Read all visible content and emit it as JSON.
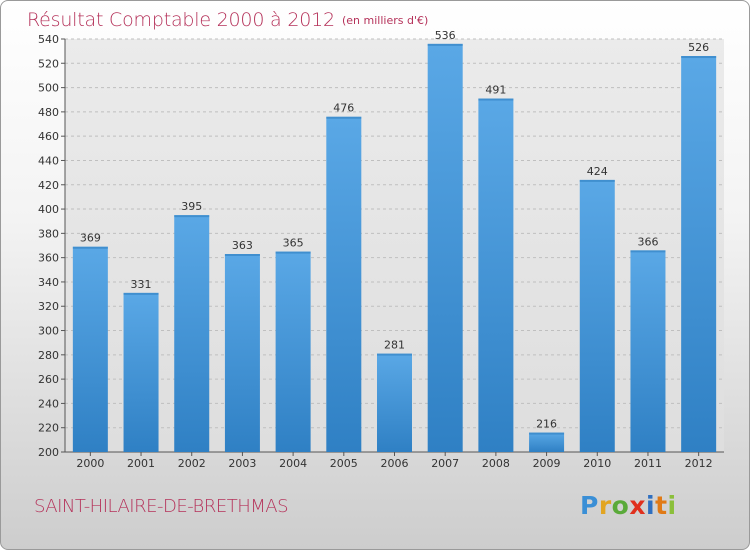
{
  "header": {
    "title": "Résultat Comptable 2000 à 2012",
    "subtitle": "(en milliers d'€)"
  },
  "footer": {
    "commune": "SAINT-HILAIRE-DE-BRETHMAS",
    "brand_letters": [
      "P",
      "r",
      "o",
      "x",
      "i",
      "t",
      "i"
    ],
    "brand_colors": [
      "#3a8fd6",
      "#e2a522",
      "#5aaa3a",
      "#e0301e",
      "#2f6fc0",
      "#e07a16",
      "#8bbf3a"
    ]
  },
  "colors": {
    "bar": "#5aa8e6",
    "bar_dark": "#2f80c4",
    "title": "#b5325a",
    "grid": "#bfbfbf"
  },
  "chart_data": {
    "type": "bar",
    "title": "Résultat Comptable 2000 à 2012",
    "ylabel": "",
    "xlabel": "",
    "ylim": [
      200,
      540
    ],
    "ytick_step": 20,
    "grid": true,
    "categories": [
      "2000",
      "2001",
      "2002",
      "2003",
      "2004",
      "2005",
      "2006",
      "2007",
      "2008",
      "2009",
      "2010",
      "2011",
      "2012"
    ],
    "values": [
      369,
      331,
      395,
      363,
      365,
      476,
      281,
      536,
      491,
      216,
      424,
      366,
      526
    ]
  }
}
